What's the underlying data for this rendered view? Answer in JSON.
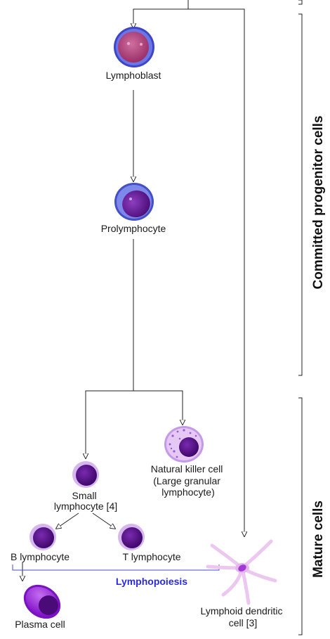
{
  "cells": {
    "lymphoblast": "Lymphoblast",
    "prolymphocyte": "Prolymphocyte",
    "nk_cell": [
      "Natural killer cell",
      "(Large granular",
      "lymphocyte)"
    ],
    "small_lymphocyte": [
      "Small",
      "lymphocyte [4]"
    ],
    "b_lymphocyte": "B lymphocyte",
    "t_lymphocyte": "T lymphocyte",
    "plasma_cell": "Plasma cell",
    "dendritic_cell": [
      "Lymphoid dendritic",
      "cell [3]"
    ]
  },
  "groups": {
    "lymphopoiesis": "Lymphopoiesis",
    "lymphopoiesis_color": "#2a2adf",
    "committed": "Committed progenitor cells",
    "mature": "Mature cells"
  },
  "colors": {
    "lymphoblast": "#b2477a",
    "prolymphocyte_nucleus": "#5a1a8a",
    "membrane_blue": "#4a5ad0",
    "lymphocyte_nucleus": "#4e0f7e",
    "nk_cytoplasm": "#e2c4f2",
    "plasma_cytoplasm": "#9a2ed8",
    "dendritic": "#ecc7f0"
  }
}
